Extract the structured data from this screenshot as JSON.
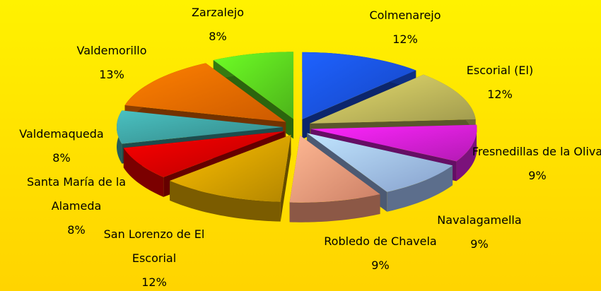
{
  "chart_data": {
    "type": "pie",
    "categories": [
      "Colmenarejo",
      "Escorial (El)",
      "Fresnedillas de la Oliva",
      "Navalagamella",
      "Robledo de Chavela",
      "San Lorenzo de El Escorial",
      "Santa María de la Alameda",
      "Valdemaqueda",
      "Valdemorillo",
      "Zarzalejo"
    ],
    "values": [
      12,
      12,
      9,
      9,
      9,
      12,
      8,
      8,
      13,
      8
    ],
    "value_labels": [
      "12%",
      "12%",
      "9%",
      "9%",
      "9%",
      "12%",
      "8%",
      "8%",
      "13%",
      "8%"
    ],
    "colors": [
      "#1a55f0",
      "#c8c060",
      "#e020e0",
      "#a8c8ff",
      "#ffa080",
      "#e0a800",
      "#e00000",
      "#40a8a8",
      "#ff7000",
      "#60e020"
    ]
  }
}
